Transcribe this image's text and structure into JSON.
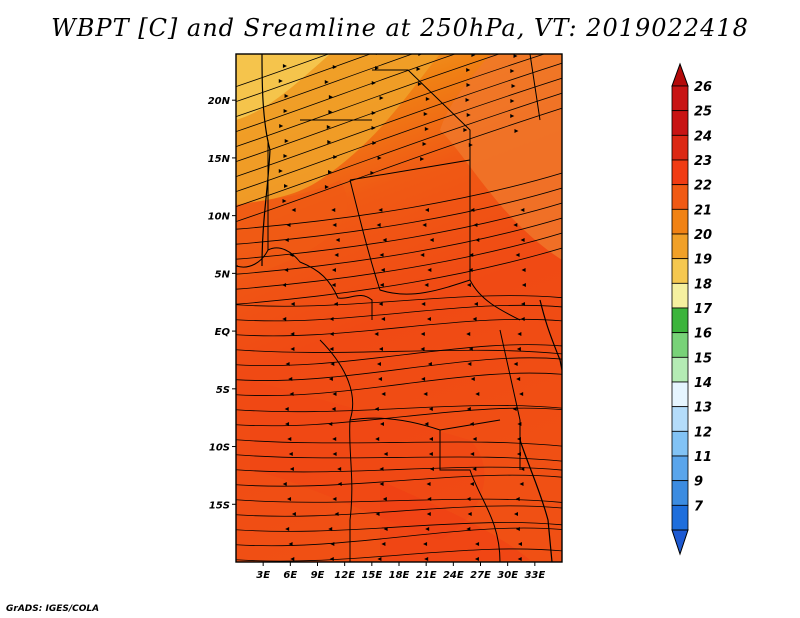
{
  "title": "WBPT [C] and Sreamline at 250hPa, VT: 2019022418",
  "credit": "GrADS: IGES/COLA",
  "map": {
    "lat_range": [
      -20,
      24
    ],
    "lon_range": [
      0,
      36
    ],
    "lat_ticks": [
      {
        "value": 20,
        "label": "20N"
      },
      {
        "value": 15,
        "label": "15N"
      },
      {
        "value": 10,
        "label": "10N"
      },
      {
        "value": 5,
        "label": "5N"
      },
      {
        "value": 0,
        "label": "EQ"
      },
      {
        "value": -5,
        "label": "5S"
      },
      {
        "value": -10,
        "label": "10S"
      },
      {
        "value": -15,
        "label": "15S"
      }
    ],
    "lon_ticks": [
      {
        "value": 3,
        "label": "3E"
      },
      {
        "value": 6,
        "label": "6E"
      },
      {
        "value": 9,
        "label": "9E"
      },
      {
        "value": 12,
        "label": "12E"
      },
      {
        "value": 15,
        "label": "15E"
      },
      {
        "value": 18,
        "label": "18E"
      },
      {
        "value": 21,
        "label": "21E"
      },
      {
        "value": 24,
        "label": "24E"
      },
      {
        "value": 27,
        "label": "27E"
      },
      {
        "value": 30,
        "label": "30E"
      },
      {
        "value": 33,
        "label": "33E"
      }
    ]
  },
  "colorbar": {
    "levels": [
      {
        "label": "26",
        "color": "#c81414"
      },
      {
        "label": "25",
        "color": "#c81414"
      },
      {
        "label": "24",
        "color": "#dc2814"
      },
      {
        "label": "23",
        "color": "#f03c14"
      },
      {
        "label": "22",
        "color": "#f05a14"
      },
      {
        "label": "21",
        "color": "#f08214"
      },
      {
        "label": "20",
        "color": "#f0a028"
      },
      {
        "label": "19",
        "color": "#f5c850"
      },
      {
        "label": "18",
        "color": "#f5f0a0"
      },
      {
        "label": "17",
        "color": "#3cb43c"
      },
      {
        "label": "16",
        "color": "#78d278"
      },
      {
        "label": "15",
        "color": "#b4ebb4"
      },
      {
        "label": "14",
        "color": "#e6f5ff"
      },
      {
        "label": "13",
        "color": "#b4dcfa"
      },
      {
        "label": "12",
        "color": "#82c3f5"
      },
      {
        "label": "11",
        "color": "#5aa5eb"
      },
      {
        "label": "9",
        "color": "#3c8ce1"
      },
      {
        "label": "7",
        "color": "#1e6edc"
      }
    ],
    "top_arrow_color": "#b40a0a",
    "bottom_arrow_color": "#1e5ad2"
  }
}
